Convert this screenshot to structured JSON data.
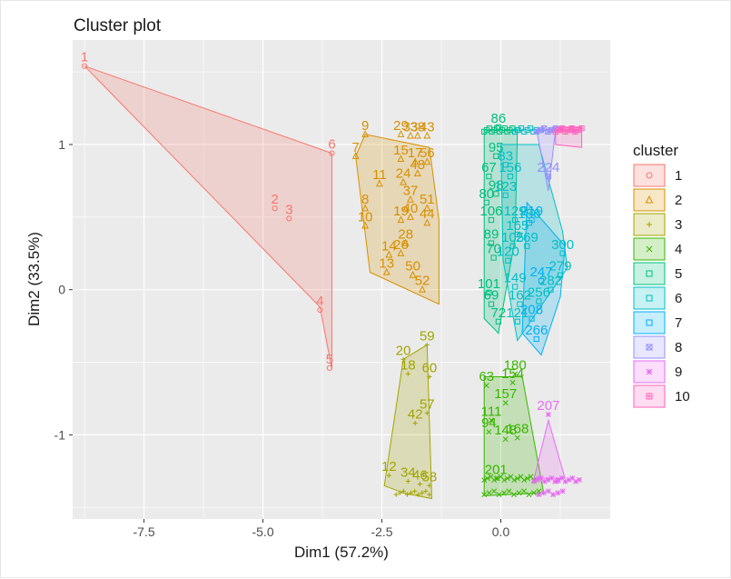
{
  "chart_data": {
    "type": "scatter",
    "title": "Cluster plot",
    "xlabel": "Dim1 (57.2%)",
    "ylabel": "Dim2 (33.5%)",
    "xlim": [
      -9.0,
      2.3
    ],
    "ylim": [
      -1.58,
      1.72
    ],
    "x_ticks": [
      -7.5,
      -5.0,
      -2.5,
      0.0
    ],
    "x_tick_labels": [
      "-7.5",
      "-5.0",
      "-2.5",
      "0.0"
    ],
    "y_ticks": [
      -1,
      0,
      1
    ],
    "y_tick_labels": [
      "-1",
      "0",
      "1"
    ],
    "legend_title": "cluster",
    "legend_position": "right",
    "clusters": [
      {
        "id": "1",
        "color": "#F8766D",
        "symbol": "circle",
        "hull": [
          [
            -8.75,
            1.54
          ],
          [
            -3.55,
            0.94
          ],
          [
            -3.55,
            -0.55
          ],
          [
            -3.8,
            -0.12
          ]
        ],
        "points": [
          {
            "x": -8.75,
            "y": 1.54,
            "label": "1"
          },
          {
            "x": -4.75,
            "y": 0.56,
            "label": "2"
          },
          {
            "x": -4.45,
            "y": 0.49,
            "label": "3"
          },
          {
            "x": -3.8,
            "y": -0.14,
            "label": "4"
          },
          {
            "x": -3.6,
            "y": -0.54,
            "label": "5"
          },
          {
            "x": -3.55,
            "y": 0.94,
            "label": "6"
          }
        ]
      },
      {
        "id": "2",
        "color": "#D89000",
        "symbol": "triangle",
        "hull": [
          [
            -3.05,
            0.92
          ],
          [
            -2.85,
            1.07
          ],
          [
            -1.5,
            0.98
          ],
          [
            -1.3,
            0.48
          ],
          [
            -1.3,
            -0.1
          ],
          [
            -2.75,
            0.12
          ]
        ],
        "points": [
          {
            "x": -2.85,
            "y": 1.07,
            "label": "9"
          },
          {
            "x": -3.05,
            "y": 0.92,
            "label": "7"
          },
          {
            "x": -2.55,
            "y": 0.73,
            "label": "11"
          },
          {
            "x": -2.85,
            "y": 0.56,
            "label": "8"
          },
          {
            "x": -2.85,
            "y": 0.44,
            "label": "10"
          },
          {
            "x": -2.1,
            "y": 1.07,
            "label": "29"
          },
          {
            "x": -1.9,
            "y": 1.06,
            "label": "33"
          },
          {
            "x": -1.75,
            "y": 1.06,
            "label": "38"
          },
          {
            "x": -1.55,
            "y": 1.06,
            "label": "43"
          },
          {
            "x": -2.1,
            "y": 0.9,
            "label": "15"
          },
          {
            "x": -1.8,
            "y": 0.88,
            "label": "17"
          },
          {
            "x": -1.55,
            "y": 0.88,
            "label": "56"
          },
          {
            "x": -1.75,
            "y": 0.8,
            "label": "48"
          },
          {
            "x": -2.05,
            "y": 0.74,
            "label": "24"
          },
          {
            "x": -1.9,
            "y": 0.62,
            "label": "37"
          },
          {
            "x": -1.55,
            "y": 0.56,
            "label": "51"
          },
          {
            "x": -2.1,
            "y": 0.48,
            "label": "19"
          },
          {
            "x": -1.9,
            "y": 0.5,
            "label": "40"
          },
          {
            "x": -1.55,
            "y": 0.46,
            "label": "44"
          },
          {
            "x": -2.0,
            "y": 0.32,
            "label": "28"
          },
          {
            "x": -2.35,
            "y": 0.24,
            "label": "14"
          },
          {
            "x": -2.1,
            "y": 0.25,
            "label": "26"
          },
          {
            "x": -2.4,
            "y": 0.12,
            "label": "13"
          },
          {
            "x": -1.85,
            "y": 0.1,
            "label": "50"
          },
          {
            "x": -1.65,
            "y": 0.0,
            "label": "52"
          }
        ]
      },
      {
        "id": "3",
        "color": "#A3A500",
        "symbol": "plus",
        "hull": [
          [
            -1.55,
            -0.38
          ],
          [
            -1.45,
            -1.44
          ],
          [
            -2.05,
            -1.4
          ],
          [
            -2.45,
            -1.35
          ],
          [
            -2.05,
            -0.48
          ]
        ],
        "points": [
          {
            "x": -1.55,
            "y": -0.38,
            "label": "59"
          },
          {
            "x": -2.05,
            "y": -0.48,
            "label": "20"
          },
          {
            "x": -1.95,
            "y": -0.58,
            "label": "18"
          },
          {
            "x": -1.5,
            "y": -0.6,
            "label": "60"
          },
          {
            "x": -1.55,
            "y": -0.85,
            "label": "57"
          },
          {
            "x": -1.8,
            "y": -0.92,
            "label": "42"
          },
          {
            "x": -2.35,
            "y": -1.28,
            "label": "12"
          },
          {
            "x": -1.95,
            "y": -1.32,
            "label": "34"
          },
          {
            "x": -1.7,
            "y": -1.34,
            "label": "46"
          },
          {
            "x": -1.5,
            "y": -1.35,
            "label": "58"
          }
        ]
      },
      {
        "id": "4",
        "color": "#39B600",
        "symbol": "x",
        "hull": [
          [
            -0.35,
            -0.6
          ],
          [
            0.45,
            -0.6
          ],
          [
            0.9,
            -1.4
          ],
          [
            -0.35,
            -1.42
          ]
        ],
        "points": [
          {
            "x": -0.3,
            "y": -0.66,
            "label": "63"
          },
          {
            "x": 0.3,
            "y": -0.58,
            "label": "180"
          },
          {
            "x": 0.25,
            "y": -0.64,
            "label": "154"
          },
          {
            "x": 0.1,
            "y": -0.78,
            "label": "157"
          },
          {
            "x": -0.2,
            "y": -0.9,
            "label": "111"
          },
          {
            "x": -0.25,
            "y": -0.98,
            "label": "94"
          },
          {
            "x": 0.1,
            "y": -1.03,
            "label": "148"
          },
          {
            "x": 0.35,
            "y": -1.02,
            "label": "168"
          },
          {
            "x": -0.1,
            "y": -1.3,
            "label": "201"
          }
        ]
      },
      {
        "id": "5",
        "color": "#00BF7D",
        "symbol": "square",
        "hull": [
          [
            -0.35,
            1.1
          ],
          [
            0.35,
            1.1
          ],
          [
            0.3,
            0.35
          ],
          [
            -0.05,
            -0.3
          ],
          [
            -0.35,
            -0.2
          ]
        ],
        "points": [
          {
            "x": -0.05,
            "y": 1.12,
            "label": "86"
          },
          {
            "x": -0.1,
            "y": 0.92,
            "label": "95"
          },
          {
            "x": -0.25,
            "y": 0.78,
            "label": "67"
          },
          {
            "x": -0.1,
            "y": 0.66,
            "label": "98"
          },
          {
            "x": -0.3,
            "y": 0.6,
            "label": "80"
          },
          {
            "x": -0.2,
            "y": 0.48,
            "label": "106"
          },
          {
            "x": -0.2,
            "y": 0.32,
            "label": "89"
          },
          {
            "x": -0.15,
            "y": 0.22,
            "label": "70"
          },
          {
            "x": -0.25,
            "y": -0.02,
            "label": "101"
          },
          {
            "x": -0.2,
            "y": -0.1,
            "label": "69"
          },
          {
            "x": -0.05,
            "y": -0.22,
            "label": "72"
          }
        ]
      },
      {
        "id": "6",
        "color": "#00BFC4",
        "symbol": "square",
        "hull": [
          [
            0.0,
            1.0
          ],
          [
            0.8,
            1.0
          ],
          [
            1.3,
            0.4
          ],
          [
            1.4,
            0.15
          ],
          [
            0.35,
            -0.35
          ],
          [
            0.05,
            0.2
          ]
        ],
        "points": [
          {
            "x": 0.1,
            "y": 0.86,
            "label": "83"
          },
          {
            "x": 0.2,
            "y": 0.78,
            "label": "156"
          },
          {
            "x": 0.1,
            "y": 0.65,
            "label": "123"
          },
          {
            "x": 0.3,
            "y": 0.48,
            "label": "129"
          },
          {
            "x": 0.6,
            "y": 0.46,
            "label": "186"
          },
          {
            "x": 0.35,
            "y": 0.38,
            "label": "165"
          },
          {
            "x": 0.25,
            "y": 0.3,
            "label": "105"
          },
          {
            "x": 0.15,
            "y": 0.2,
            "label": "120"
          },
          {
            "x": 0.55,
            "y": 0.3,
            "label": "269"
          },
          {
            "x": 1.3,
            "y": 0.25,
            "label": "300"
          },
          {
            "x": 0.3,
            "y": 0.02,
            "label": "149"
          },
          {
            "x": 1.25,
            "y": 0.1,
            "label": "279"
          },
          {
            "x": 0.4,
            "y": -0.1,
            "label": "162"
          },
          {
            "x": 1.05,
            "y": 0.0,
            "label": "282"
          },
          {
            "x": 0.8,
            "y": -0.08,
            "label": "256"
          },
          {
            "x": 0.35,
            "y": -0.22,
            "label": "121"
          }
        ]
      },
      {
        "id": "7",
        "color": "#00B0F6",
        "symbol": "square",
        "hull": [
          [
            0.55,
            0.6
          ],
          [
            1.35,
            0.3
          ],
          [
            1.25,
            -0.05
          ],
          [
            0.85,
            -0.45
          ],
          [
            0.45,
            -0.3
          ]
        ],
        "points": [
          {
            "x": 0.65,
            "y": 0.48,
            "label": "219"
          },
          {
            "x": 0.85,
            "y": 0.06,
            "label": "247"
          },
          {
            "x": 0.65,
            "y": -0.2,
            "label": "208"
          },
          {
            "x": 0.75,
            "y": -0.34,
            "label": "266"
          }
        ]
      },
      {
        "id": "8",
        "color": "#9590FF",
        "symbol": "box-x",
        "hull": [
          [
            0.75,
            1.1
          ],
          [
            1.15,
            1.1
          ],
          [
            1.0,
            0.68
          ]
        ],
        "points": [
          {
            "x": 1.0,
            "y": 0.78,
            "label": "224"
          },
          {
            "x": 0.85,
            "y": 1.1,
            "label": ""
          },
          {
            "x": 1.05,
            "y": 1.1,
            "label": ""
          }
        ]
      },
      {
        "id": "9",
        "color": "#E76BF3",
        "symbol": "star",
        "hull": [
          [
            0.7,
            -1.3
          ],
          [
            1.35,
            -1.3
          ],
          [
            1.0,
            -0.9
          ]
        ],
        "points": [
          {
            "x": 1.0,
            "y": -0.86,
            "label": "207"
          },
          {
            "x": 0.8,
            "y": -1.3,
            "label": ""
          },
          {
            "x": 1.2,
            "y": -1.32,
            "label": ""
          }
        ]
      },
      {
        "id": "10",
        "color": "#FF62BC",
        "symbol": "box-plus",
        "hull": [
          [
            1.15,
            1.12
          ],
          [
            1.7,
            1.12
          ],
          [
            1.7,
            0.98
          ],
          [
            1.15,
            1.0
          ]
        ],
        "points": [
          {
            "x": 1.25,
            "y": 1.1,
            "label": ""
          },
          {
            "x": 1.5,
            "y": 1.1,
            "label": ""
          }
        ]
      }
    ]
  }
}
